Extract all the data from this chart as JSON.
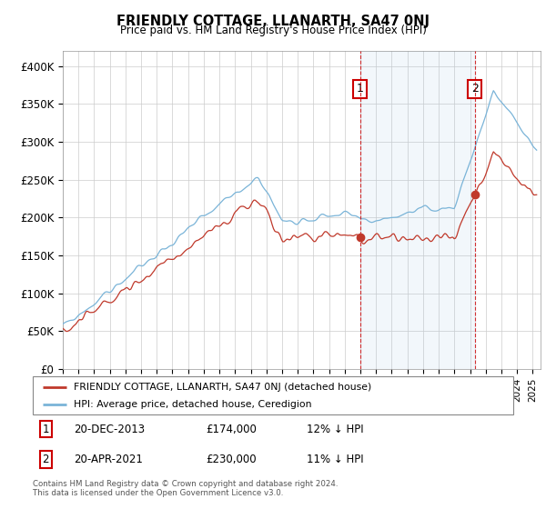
{
  "title": "FRIENDLY COTTAGE, LLANARTH, SA47 0NJ",
  "subtitle": "Price paid vs. HM Land Registry's House Price Index (HPI)",
  "ylabel_ticks": [
    "£0",
    "£50K",
    "£100K",
    "£150K",
    "£200K",
    "£250K",
    "£300K",
    "£350K",
    "£400K"
  ],
  "ytick_values": [
    0,
    50000,
    100000,
    150000,
    200000,
    250000,
    300000,
    350000,
    400000
  ],
  "ylim": [
    0,
    420000
  ],
  "xlim_start": 1995.0,
  "xlim_end": 2025.5,
  "hpi_color": "#7ab4d8",
  "price_color": "#c0392b",
  "marker1_date": 2013.97,
  "marker1_price": 174000,
  "marker2_date": 2021.3,
  "marker2_price": 230000,
  "legend_property": "FRIENDLY COTTAGE, LLANARTH, SA47 0NJ (detached house)",
  "legend_hpi": "HPI: Average price, detached house, Ceredigion",
  "footer": "Contains HM Land Registry data © Crown copyright and database right 2024.\nThis data is licensed under the Open Government Licence v3.0.",
  "vline1_x": 2013.97,
  "vline2_x": 2021.3,
  "shade_start": 2013.97,
  "shade_end": 2021.3
}
